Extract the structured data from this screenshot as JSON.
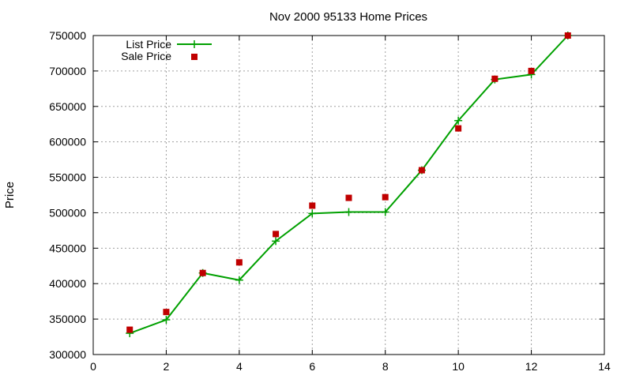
{
  "chart_data": {
    "type": "line",
    "title": "Nov 2000 95133 Home Prices",
    "xlabel": "",
    "ylabel": "Price",
    "xlim": [
      0,
      14
    ],
    "ylim": [
      300000,
      750000
    ],
    "xticks": [
      0,
      2,
      4,
      6,
      8,
      10,
      12,
      14
    ],
    "yticks": [
      300000,
      350000,
      400000,
      450000,
      500000,
      550000,
      600000,
      650000,
      700000,
      750000
    ],
    "grid": true,
    "legend": "top-left",
    "series": [
      {
        "name": "List Price",
        "style": "line+cross",
        "color": "#00a000",
        "x": [
          1,
          2,
          3,
          4,
          5,
          6,
          7,
          8,
          9,
          10,
          11,
          12,
          13
        ],
        "y": [
          330000,
          349000,
          415000,
          405000,
          460000,
          499000,
          501000,
          501000,
          560000,
          630000,
          688000,
          695000,
          750000
        ]
      },
      {
        "name": "Sale Price",
        "style": "square",
        "color": "#c00000",
        "x": [
          1,
          2,
          3,
          4,
          5,
          6,
          7,
          8,
          9,
          10,
          11,
          12,
          13
        ],
        "y": [
          335000,
          360000,
          415000,
          430000,
          470000,
          510000,
          521000,
          522000,
          560000,
          619000,
          689000,
          700000,
          750000
        ]
      }
    ]
  }
}
